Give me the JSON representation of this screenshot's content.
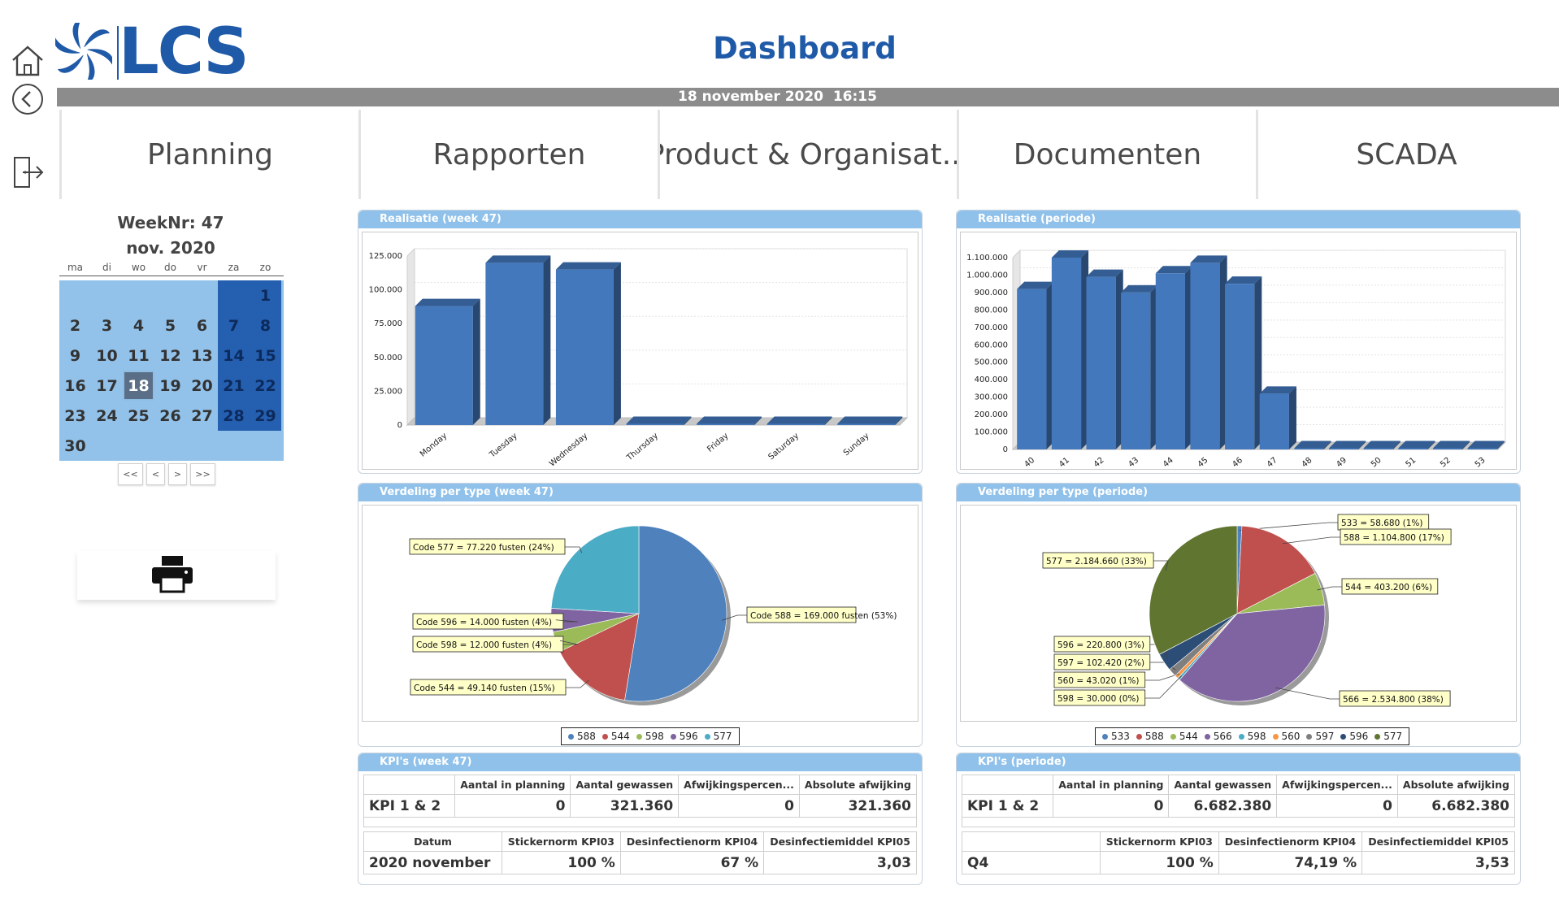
{
  "app": {
    "logo_text": "LCS",
    "title": "Dashboard",
    "datetime": "18 november 2020  16:15"
  },
  "colors": {
    "brand": "#1f5aa8",
    "header_bar": "#8c8c8c",
    "panel_header": "#8fc1ea",
    "calendar_light": "#92c2ea",
    "calendar_weekend": "#245fb0"
  },
  "rail": {
    "home": "home-icon",
    "back": "back-icon",
    "logout": "logout-icon"
  },
  "nav": [
    {
      "label": "Planning"
    },
    {
      "label": "Rapporten"
    },
    {
      "label": "Product & Organisat..."
    },
    {
      "label": "Documenten"
    },
    {
      "label": "SCADA"
    }
  ],
  "calendar": {
    "week_label": "WeekNr: 47",
    "month_label": "nov. 2020",
    "weekdays": [
      "ma",
      "di",
      "wo",
      "do",
      "vr",
      "za",
      "zo"
    ],
    "days": [
      [
        "",
        "",
        "",
        "",
        "",
        "",
        "1"
      ],
      [
        "2",
        "3",
        "4",
        "5",
        "6",
        "7",
        "8"
      ],
      [
        "9",
        "10",
        "11",
        "12",
        "13",
        "14",
        "15"
      ],
      [
        "16",
        "17",
        "18",
        "19",
        "20",
        "21",
        "22"
      ],
      [
        "23",
        "24",
        "25",
        "26",
        "27",
        "28",
        "29"
      ],
      [
        "30",
        "",
        "",
        "",
        "",
        "",
        ""
      ]
    ],
    "today": "18",
    "nav_buttons": [
      "<<",
      "<",
      ">",
      ">>"
    ]
  },
  "print": {
    "icon": "printer-icon"
  },
  "panels": {
    "real_week": "Realisatie (week 47)",
    "real_period": "Realisatie (periode)",
    "pie_week": "Verdeling per type (week 47)",
    "pie_period": "Verdeling per type (periode)",
    "kpi_week": "KPI's (week 47)",
    "kpi_period": "KPI's (periode)"
  },
  "chart_data": [
    {
      "type": "bar",
      "title": "Realisatie (week 47)",
      "categories": [
        "Monday",
        "Tuesday",
        "Wednesday",
        "Thursday",
        "Friday",
        "Saturday",
        "Sunday"
      ],
      "values": [
        88000,
        120000,
        115000,
        0,
        0,
        0,
        0
      ],
      "ylim": [
        0,
        125000
      ],
      "yticks": [
        "0",
        "25.000",
        "50.000",
        "75.000",
        "100.000",
        "125.000"
      ],
      "color": "#4378bd"
    },
    {
      "type": "bar",
      "title": "Realisatie (periode)",
      "categories": [
        "40",
        "41",
        "42",
        "43",
        "44",
        "45",
        "46",
        "47",
        "48",
        "49",
        "50",
        "51",
        "52",
        "53"
      ],
      "values": [
        920000,
        1100000,
        990000,
        900000,
        1010000,
        1070000,
        950000,
        320000,
        0,
        0,
        0,
        0,
        0,
        0
      ],
      "ylim": [
        0,
        1100000
      ],
      "yticks": [
        "0",
        "100.000",
        "200.000",
        "300.000",
        "400.000",
        "500.000",
        "600.000",
        "700.000",
        "800.000",
        "900.000",
        "1.000.000",
        "1.100.000"
      ],
      "color": "#4378bd"
    },
    {
      "type": "pie",
      "title": "Verdeling per type (week 47)",
      "slices": [
        {
          "name": "588",
          "value": 169000,
          "color": "#4f81bd",
          "label": "Code 588 = 169.000 fusten (53%)"
        },
        {
          "name": "544",
          "value": 49140,
          "color": "#c0504d",
          "label": "Code 544 = 49.140 fusten (15%)"
        },
        {
          "name": "598",
          "value": 12000,
          "color": "#9bbb59",
          "label": "Code 598 = 12.000 fusten (4%)"
        },
        {
          "name": "596",
          "value": 14000,
          "color": "#8064a2",
          "label": "Code 596 = 14.000 fusten (4%)"
        },
        {
          "name": "577",
          "value": 77220,
          "color": "#4bacc6",
          "label": "Code 577 = 77.220 fusten (24%)"
        }
      ]
    },
    {
      "type": "pie",
      "title": "Verdeling per type (periode)",
      "slices": [
        {
          "name": "533",
          "value": 58680,
          "color": "#4f81bd",
          "label": "533 = 58.680 (1%)"
        },
        {
          "name": "588",
          "value": 1104800,
          "color": "#c0504d",
          "label": "588 = 1.104.800 (17%)"
        },
        {
          "name": "544",
          "value": 403200,
          "color": "#9bbb59",
          "label": "544 = 403.200 (6%)"
        },
        {
          "name": "566",
          "value": 2534800,
          "color": "#8064a2",
          "label": "566 = 2.534.800 (38%)"
        },
        {
          "name": "598",
          "value": 30000,
          "color": "#4bacc6",
          "label": "598 = 30.000 (0%)"
        },
        {
          "name": "560",
          "value": 43020,
          "color": "#f79646",
          "label": "560 = 43.020 (1%)"
        },
        {
          "name": "597",
          "value": 102420,
          "color": "#7f7f7f",
          "label": "597 = 102.420 (2%)"
        },
        {
          "name": "596",
          "value": 220800,
          "color": "#2c4d75",
          "label": "596 = 220.800 (3%)"
        },
        {
          "name": "577",
          "value": 2184660,
          "color": "#5f7530",
          "label": "577 = 2.184.660 (33%)"
        }
      ]
    }
  ],
  "kpi_week": {
    "row1_headers": [
      "",
      "Aantal in planning",
      "Aantal gewassen",
      "Afwijkingspercen...",
      "Absolute afwijking"
    ],
    "row1_values": [
      "KPI 1 & 2",
      "0",
      "321.360",
      "0",
      "321.360"
    ],
    "row2_headers": [
      "Datum",
      "Stickernorm KPI03",
      "Desinfectienorm KPI04",
      "Desinfectiemiddel KPI05"
    ],
    "row2_values": [
      "2020 november",
      "100 %",
      "67 %",
      "3,03"
    ]
  },
  "kpi_period": {
    "row1_headers": [
      "",
      "Aantal in planning",
      "Aantal gewassen",
      "Afwijkingspercen...",
      "Absolute afwijking"
    ],
    "row1_values": [
      "KPI 1 & 2",
      "0",
      "6.682.380",
      "0",
      "6.682.380"
    ],
    "row2_headers": [
      "",
      "Stickernorm KPI03",
      "Desinfectienorm KPI04",
      "Desinfectiemiddel KPI05"
    ],
    "row2_values": [
      "Q4",
      "100 %",
      "74,19 %",
      "3,53"
    ]
  }
}
